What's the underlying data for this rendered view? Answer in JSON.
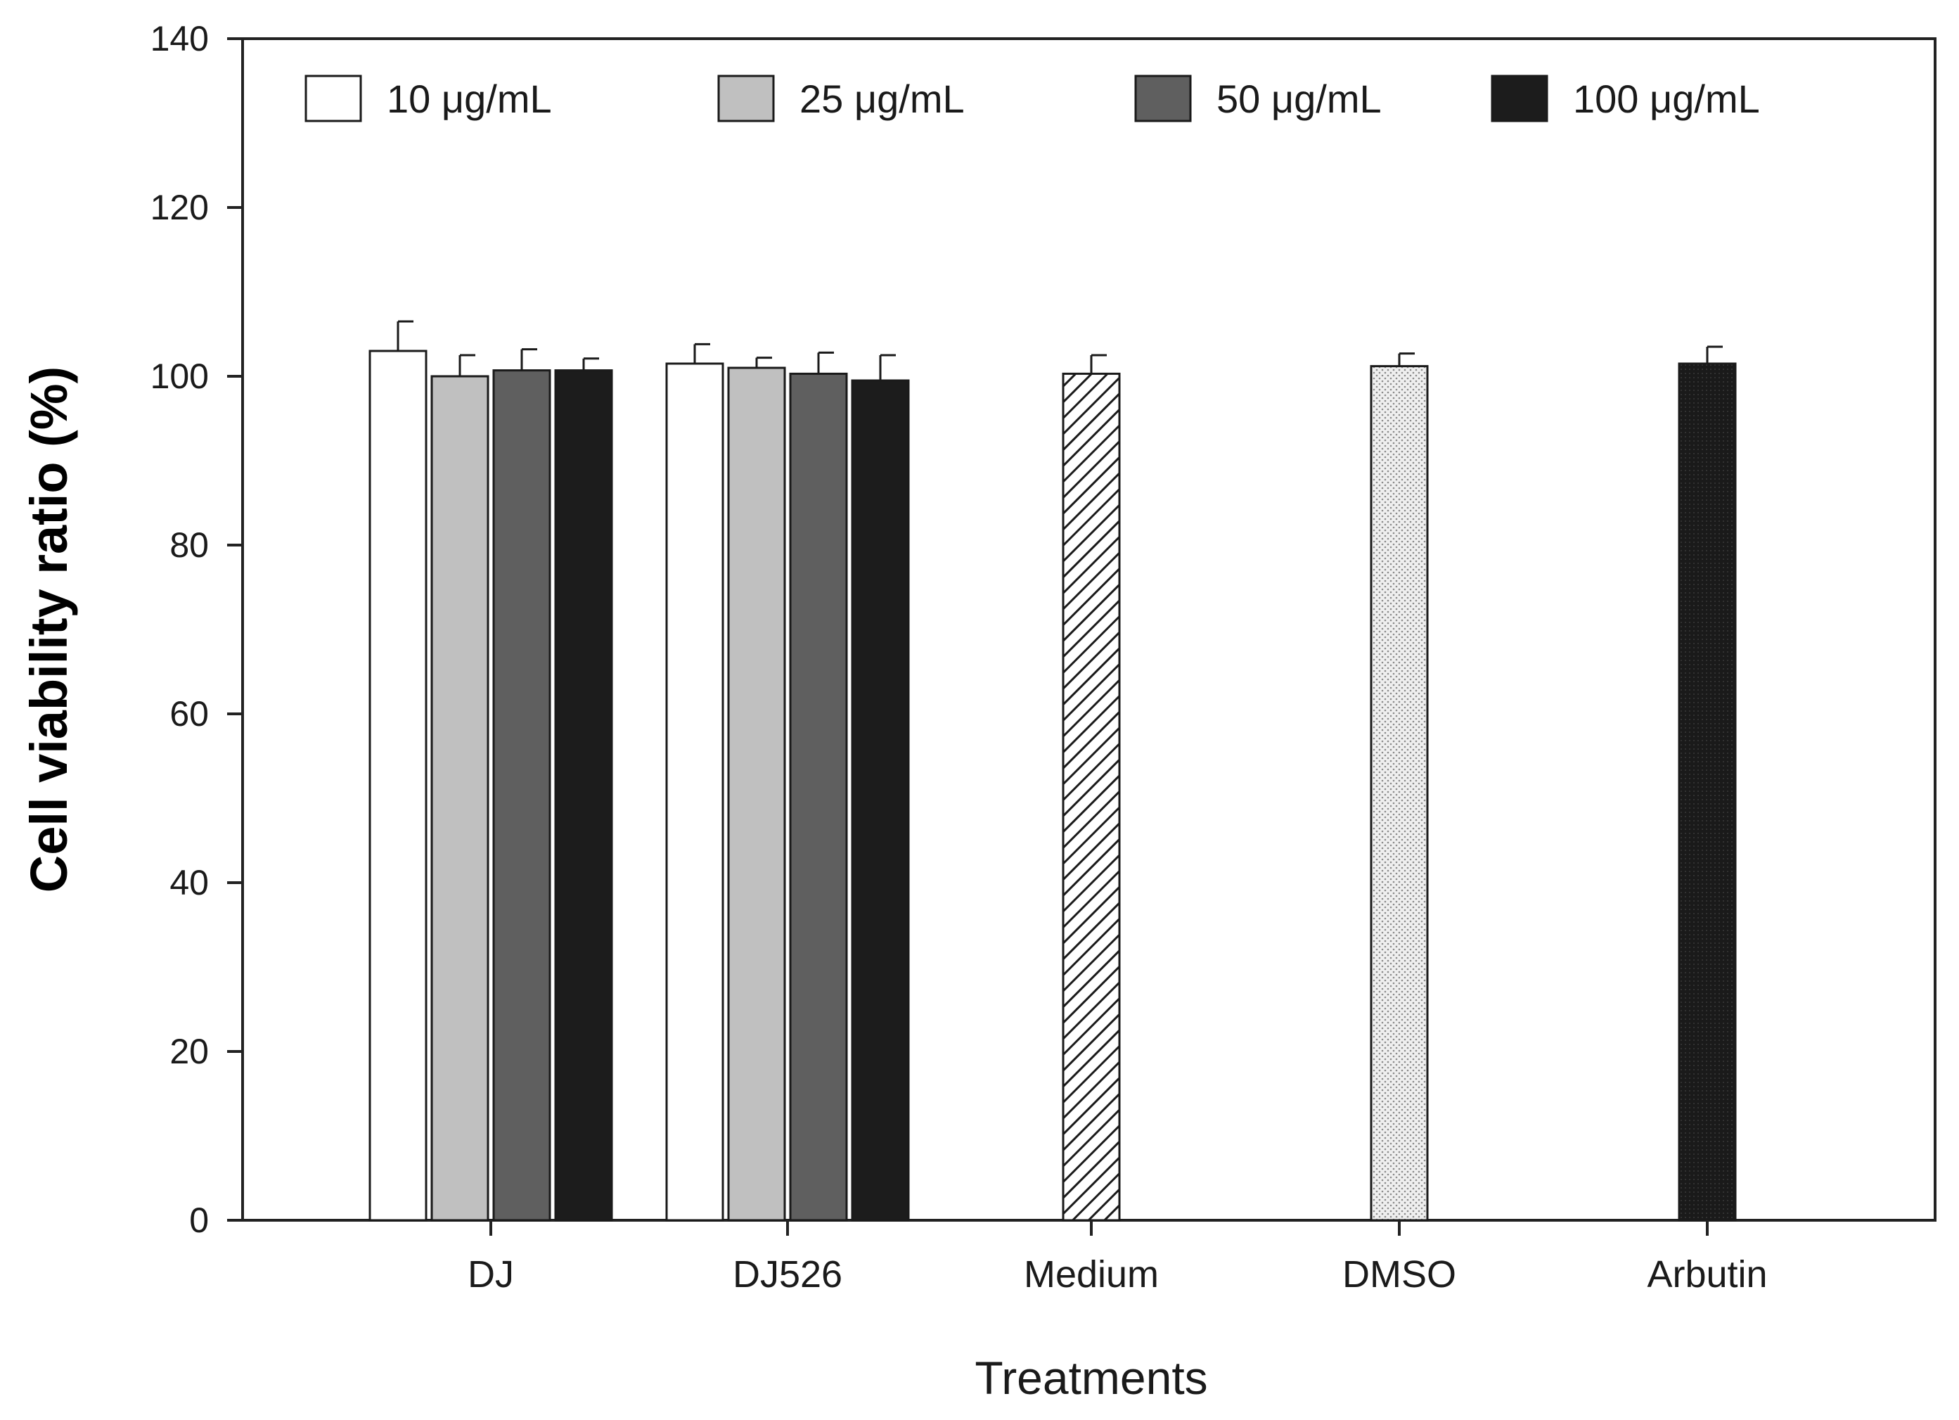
{
  "chart_data": {
    "type": "bar",
    "title": "",
    "xlabel": "Treatments",
    "ylabel": "Cell viability ratio (%)",
    "ylim": [
      0,
      140
    ],
    "yticks": [
      "0",
      "20",
      "40",
      "60",
      "80",
      "100",
      "120",
      "140"
    ],
    "categories": [
      "DJ",
      "DJ526",
      "Medium",
      "DMSO",
      "Arbutin"
    ],
    "series": [
      {
        "name": "10 μg/mL",
        "color": "#ffffff",
        "values": [
          103.0,
          101.5,
          null,
          null,
          null
        ],
        "errors": [
          3.5,
          2.3,
          null,
          null,
          null
        ]
      },
      {
        "name": "25 μg/mL",
        "color": "#c0c0c0",
        "values": [
          100.0,
          101.0,
          null,
          null,
          null
        ],
        "errors": [
          2.5,
          1.2,
          null,
          null,
          null
        ]
      },
      {
        "name": "50 μg/mL",
        "color": "#5f5f5f",
        "values": [
          100.7,
          100.3,
          null,
          null,
          null
        ],
        "errors": [
          2.5,
          2.5,
          null,
          null,
          null
        ]
      },
      {
        "name": "100 μg/mL",
        "color": "#1c1c1c",
        "values": [
          100.7,
          99.5,
          null,
          null,
          null
        ],
        "errors": [
          1.4,
          3.0,
          null,
          null,
          null
        ]
      }
    ],
    "controls": [
      {
        "category": "Medium",
        "value": 100.3,
        "error": 2.2,
        "fill": "hatch"
      },
      {
        "category": "DMSO",
        "value": 101.2,
        "error": 1.5,
        "fill": "dots"
      },
      {
        "category": "Arbutin",
        "value": 101.5,
        "error": 2.0,
        "fill": "dark"
      }
    ],
    "legend_position": "top",
    "grid": false
  }
}
